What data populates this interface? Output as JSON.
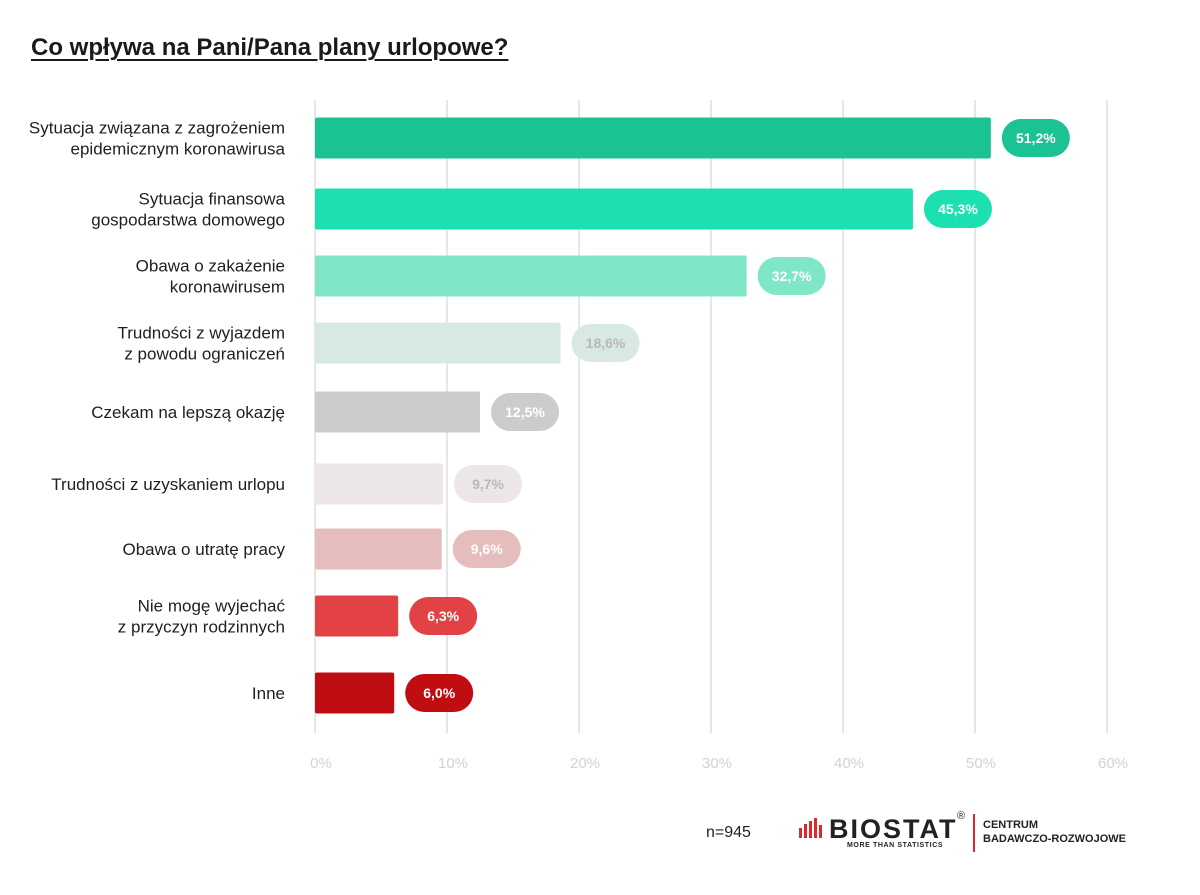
{
  "title": "Co wpływa na Pani/Pana plany urlopowe?",
  "footer": {
    "n_label": "n=945",
    "logo_name": "BIOSTAT",
    "logo_reg": "®",
    "logo_tagline": "MORE THAN STATISTICS",
    "logo_side_line1": "CENTRUM",
    "logo_side_line2": "BADAWCZO-ROZWOJOWE",
    "logo_color": "#e0262e"
  },
  "chart_data": {
    "type": "bar",
    "orientation": "horizontal",
    "title": "Co wpływa na Pani/Pana plany urlopowe?",
    "xlabel": "",
    "ylabel": "",
    "xlim": [
      0,
      60
    ],
    "x_ticks": [
      "0%",
      "10%",
      "20%",
      "30%",
      "40%",
      "50%",
      "60%"
    ],
    "grid": true,
    "categories": [
      [
        "Sytuacja związana z zagrożeniem",
        "epidemicznym koronawirusa"
      ],
      [
        "Sytuacja finansowa",
        "gospodarstwa domowego"
      ],
      [
        "Obawa o zakażenie",
        "koronawirusem"
      ],
      [
        "Trudności z wyjazdem",
        "z powodu ograniczeń"
      ],
      [
        "Czekam na lepszą okazję"
      ],
      [
        "Trudności z uzyskaniem urlopu"
      ],
      [
        "Obawa o utratę pracy"
      ],
      [
        "Nie mogę wyjechać",
        "z przyczyn rodzinnych"
      ],
      [
        "Inne"
      ]
    ],
    "values": [
      51.2,
      45.3,
      32.7,
      18.6,
      12.5,
      9.7,
      9.6,
      6.3,
      6.0
    ],
    "value_labels": [
      "51,2%",
      "45,3%",
      "32,7%",
      "18,6%",
      "12,5%",
      "9,7%",
      "9,6%",
      "6,3%",
      "6,0%"
    ],
    "colors": [
      "#1bc394",
      "#1de0b0",
      "#7fe6c8",
      "#d8e9e3",
      "#cccccc",
      "#ede6e6",
      "#e5bdbd",
      "#e24246",
      "#c00d12"
    ],
    "label_text_colors": [
      "#ffffff",
      "#ffffff",
      "#ffffff",
      "#b8b8b8",
      "#ffffff",
      "#b8b8b8",
      "#ffffff",
      "#ffffff",
      "#ffffff"
    ]
  }
}
